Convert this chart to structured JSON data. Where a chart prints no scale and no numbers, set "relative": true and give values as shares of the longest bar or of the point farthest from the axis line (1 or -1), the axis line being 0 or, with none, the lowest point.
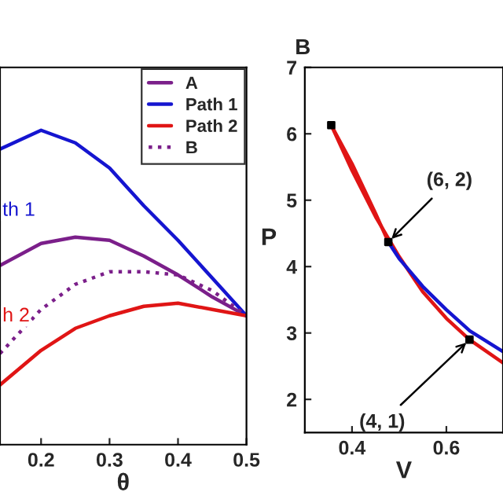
{
  "chart_data": [
    {
      "type": "line",
      "xlabel": "θ",
      "relative": true,
      "xlim": [
        0.14,
        0.5
      ],
      "xticks": [
        0.2,
        0.3,
        0.4,
        0.5
      ],
      "tick_labels": "x",
      "legend": "top right",
      "grid": false,
      "x": [
        0.14,
        0.2,
        0.25,
        0.3,
        0.35,
        0.4,
        0.45,
        0.5
      ],
      "series": [
        {
          "name": "A",
          "color": "#7b1f8a",
          "line_style": "solid",
          "values": [
            0.57,
            0.64,
            0.66,
            0.65,
            0.6,
            0.54,
            0.47,
            0.41
          ]
        },
        {
          "name": "Path 1",
          "color": "#1515d0",
          "line_style": "solid",
          "values": [
            0.94,
            1,
            0.96,
            0.88,
            0.76,
            0.65,
            0.53,
            0.41
          ]
        },
        {
          "name": "Path 2",
          "color": "#e01515",
          "line_style": "solid",
          "values": [
            0.19,
            0.3,
            0.37,
            0.41,
            0.44,
            0.45,
            0.43,
            0.41
          ]
        },
        {
          "name": "B",
          "color": "#7b1f8a",
          "line_style": "dotted",
          "values": [
            0.29,
            0.43,
            0.51,
            0.55,
            0.55,
            0.54,
            0.49,
            0.41
          ]
        }
      ],
      "annotations": [
        "th 1",
        "h 2"
      ]
    },
    {
      "type": "line",
      "title": "B",
      "xlabel": "V",
      "ylabel": "P",
      "xlim": [
        0.3,
        0.72
      ],
      "ylim": [
        1.5,
        7
      ],
      "xticks": [
        0.4,
        0.6
      ],
      "yticks": [
        2,
        3,
        4,
        5,
        6,
        7
      ],
      "grid": false,
      "series": [
        {
          "color": "#e01515",
          "x": [
            0.356,
            0.4,
            0.45,
            0.5,
            0.55,
            0.6,
            0.649,
            0.72
          ],
          "values": [
            6.13,
            5.45,
            4.75,
            4.15,
            3.62,
            3.22,
            2.9,
            2.55
          ]
        },
        {
          "color": "#e01515",
          "x": [
            0.356,
            0.4,
            0.45,
            0.477
          ],
          "values": [
            6.13,
            5.55,
            4.8,
            4.37
          ]
        },
        {
          "color": "#1515d0",
          "x": [
            0.477,
            0.5,
            0.55,
            0.6,
            0.65,
            0.72
          ],
          "values": [
            4.37,
            4.12,
            3.7,
            3.35,
            3.03,
            2.72
          ]
        },
        {
          "type": "scatter",
          "color": "#000000",
          "marker": "square",
          "x": [
            0.356,
            0.477,
            0.649
          ],
          "values": [
            6.13,
            4.37,
            2.9
          ]
        }
      ],
      "annotations": [
        {
          "text": "(6, 2)",
          "x": 0.477,
          "y": 4.37
        },
        {
          "text": "(4, 1)",
          "x": 0.649,
          "y": 2.9
        }
      ]
    }
  ]
}
